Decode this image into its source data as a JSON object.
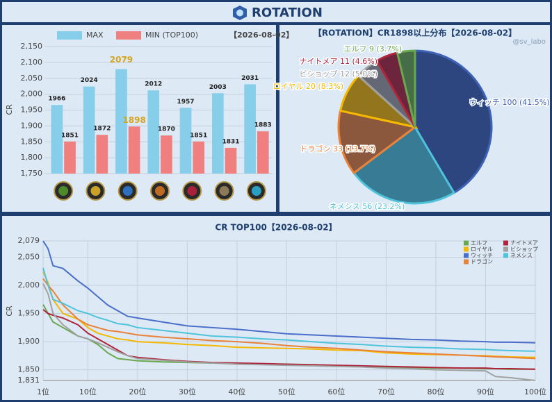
{
  "header": {
    "title": "ROTATION"
  },
  "chart_data": [
    {
      "type": "bar",
      "annotation": "【2026-08-02】",
      "y_label": "CR",
      "categories": [
        null,
        null,
        null,
        null,
        null,
        null,
        null
      ],
      "series": [
        {
          "name": "MAX",
          "color": "#87ceeb",
          "values": [
            1966,
            2024,
            2079,
            2012,
            1957,
            2003,
            2031
          ]
        },
        {
          "name": "MIN (TOP100)",
          "color": "#f08080",
          "values": [
            1851,
            1872,
            1898,
            1870,
            1851,
            1831,
            1883
          ]
        }
      ],
      "ylim": [
        1750,
        2150
      ],
      "yticks": [
        {
          "value": 1750,
          "label": "1,750"
        },
        {
          "value": 1800,
          "label": "1,800"
        },
        {
          "value": 1850,
          "label": "1,850"
        },
        {
          "value": 1900,
          "label": "1,900"
        },
        {
          "value": 1950,
          "label": "1,950"
        },
        {
          "value": 2000,
          "label": "2,000"
        },
        {
          "value": 2050,
          "label": "2,050"
        },
        {
          "value": 2100,
          "label": "2,100"
        },
        {
          "value": 2150,
          "label": "2,150"
        }
      ],
      "grid": true,
      "legend": "top",
      "highlight": {
        "index": 2,
        "color": "#d4a520"
      }
    },
    {
      "type": "pie",
      "title": "【ROTATION】CR1898以上分布【2026-08-02】",
      "annotation": "@sv_labo",
      "categories": [
        "ウィッチ",
        "ネメシス",
        "ドラゴン",
        "ロイヤル",
        "ビショップ",
        "ナイトメア",
        "エルフ"
      ],
      "values": [
        100,
        56,
        33,
        20,
        12,
        11,
        9
      ],
      "value_labels": [
        "100 (41.5%)",
        "56 (23.2%)",
        "33 (13.7%)",
        "20 (8.3%)",
        "12 (5.0%)",
        "11 (4.6%)",
        "9 (3.7%)"
      ],
      "colors": [
        "#3e62b5",
        "#4fc3d9",
        "#e8823a",
        "#f5b800",
        "#a0a0a0",
        "#b0243a",
        "#6aa84f"
      ]
    },
    {
      "type": "line",
      "title": "CR TOP100【2026-08-02】",
      "y_label": "CR",
      "x": [
        1,
        2,
        3,
        5,
        8,
        10,
        12,
        14,
        16,
        18,
        20,
        25,
        30,
        35,
        40,
        45,
        50,
        55,
        60,
        65,
        70,
        75,
        80,
        85,
        90,
        92,
        95,
        100
      ],
      "xlim": [
        1,
        100
      ],
      "xticks": [
        {
          "value": 1,
          "label": "1位"
        },
        {
          "value": 10,
          "label": "10位"
        },
        {
          "value": 20,
          "label": "20位"
        },
        {
          "value": 30,
          "label": "30位"
        },
        {
          "value": 40,
          "label": "40位"
        },
        {
          "value": 50,
          "label": "50位"
        },
        {
          "value": 60,
          "label": "60位"
        },
        {
          "value": 70,
          "label": "70位"
        },
        {
          "value": 80,
          "label": "80位"
        },
        {
          "value": 90,
          "label": "90位"
        },
        {
          "value": 100,
          "label": "100位"
        }
      ],
      "ylim": [
        1831,
        2079
      ],
      "yticks": [
        {
          "value": 1831,
          "label": "1,831"
        },
        {
          "value": 1850,
          "label": "1,850"
        },
        {
          "value": 1900,
          "label": "1,900"
        },
        {
          "value": 1950,
          "label": "1,950"
        },
        {
          "value": 2000,
          "label": "2,000"
        },
        {
          "value": 2050,
          "label": "2,050"
        },
        {
          "value": 2079,
          "label": "2,079"
        }
      ],
      "grid": true,
      "legend": "top-right",
      "series": [
        {
          "name": "エルフ",
          "color": "#6aa84f",
          "values": [
            1966,
            1950,
            1935,
            1925,
            1910,
            1905,
            1895,
            1880,
            1870,
            1868,
            1866,
            1864,
            1863,
            1862,
            1861,
            1860,
            1859,
            1858,
            1857,
            1856,
            1855,
            1854,
            1853,
            1853,
            1852,
            1852,
            1851,
            1851
          ]
        },
        {
          "name": "ロイヤル",
          "color": "#f5b800",
          "values": [
            2024,
            2005,
            1975,
            1950,
            1940,
            1925,
            1915,
            1910,
            1905,
            1903,
            1900,
            1898,
            1895,
            1893,
            1890,
            1889,
            1888,
            1887,
            1885,
            1884,
            1880,
            1878,
            1877,
            1876,
            1875,
            1874,
            1873,
            1872
          ]
        },
        {
          "name": "ウィッチ",
          "color": "#4a6fc9",
          "values": [
            2079,
            2065,
            2035,
            2030,
            2008,
            1995,
            1980,
            1965,
            1955,
            1945,
            1942,
            1935,
            1928,
            1925,
            1922,
            1918,
            1914,
            1912,
            1910,
            1908,
            1906,
            1904,
            1903,
            1901,
            1900,
            1899,
            1899,
            1898
          ]
        },
        {
          "name": "ドラゴン",
          "color": "#e8823a",
          "values": [
            2012,
            2000,
            1990,
            1965,
            1940,
            1930,
            1925,
            1920,
            1918,
            1915,
            1912,
            1908,
            1905,
            1902,
            1900,
            1897,
            1893,
            1890,
            1888,
            1885,
            1882,
            1880,
            1878,
            1876,
            1874,
            1873,
            1872,
            1870
          ]
        },
        {
          "name": "ナイトメア",
          "color": "#b0243a",
          "values": [
            1957,
            1950,
            1947,
            1942,
            1930,
            1915,
            1905,
            1895,
            1885,
            1875,
            1872,
            1868,
            1865,
            1863,
            1862,
            1861,
            1860,
            1859,
            1858,
            1857,
            1856,
            1855,
            1854,
            1853,
            1853,
            1852,
            1852,
            1851
          ]
        },
        {
          "name": "ビショップ",
          "color": "#a0a0a0",
          "values": [
            2003,
            1985,
            1950,
            1930,
            1910,
            1905,
            1898,
            1890,
            1882,
            1875,
            1870,
            1867,
            1864,
            1862,
            1860,
            1859,
            1858,
            1857,
            1856,
            1855,
            1853,
            1852,
            1850,
            1849,
            1848,
            1838,
            1836,
            1831
          ]
        },
        {
          "name": "ネメシス",
          "color": "#4fc3d9",
          "values": [
            2031,
            2000,
            1975,
            1968,
            1955,
            1950,
            1943,
            1938,
            1932,
            1930,
            1925,
            1920,
            1915,
            1910,
            1908,
            1905,
            1903,
            1900,
            1897,
            1895,
            1892,
            1890,
            1889,
            1887,
            1886,
            1885,
            1884,
            1883
          ]
        }
      ]
    }
  ]
}
